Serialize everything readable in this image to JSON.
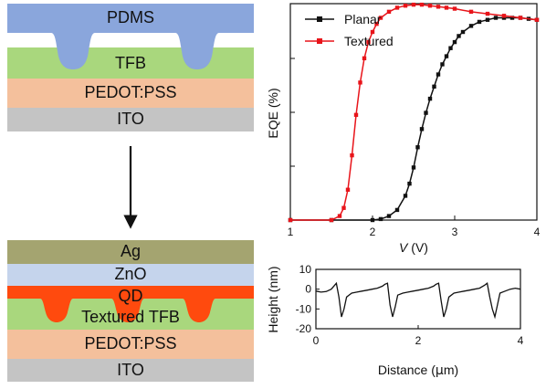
{
  "top_stack": {
    "layers": [
      {
        "label": "PDMS",
        "color": "#8aa6dc"
      },
      {
        "label": "TFB",
        "color": "#a9d77d"
      },
      {
        "label": "PEDOT:PSS",
        "color": "#f4c09c"
      },
      {
        "label": "ITO",
        "color": "#c4c4c4"
      }
    ]
  },
  "bottom_stack": {
    "layers": [
      {
        "label": "Ag",
        "color": "#a4a470"
      },
      {
        "label": "ZnO",
        "color": "#c5d4ec"
      },
      {
        "label": "QD",
        "color": "#ff4a0e"
      },
      {
        "label": "Textured TFB",
        "color": "#a9d77d"
      },
      {
        "label": "PEDOT:PSS",
        "color": "#f4c09c"
      },
      {
        "label": "ITO",
        "color": "#c4c4c4"
      }
    ]
  },
  "chart_data": [
    {
      "type": "line",
      "title": "",
      "xlabel_italic": "V",
      "xlabel_unit": " (V)",
      "ylabel": "EQE (%)",
      "xlim": [
        1,
        4
      ],
      "ylim": [
        0,
        1.07
      ],
      "xticks": [
        "1",
        "2",
        "3",
        "4"
      ],
      "legend_position": "top-left",
      "series": [
        {
          "name": "Planar",
          "color": "#111111",
          "x": [
            1.0,
            1.5,
            2.0,
            2.1,
            2.2,
            2.3,
            2.4,
            2.45,
            2.5,
            2.55,
            2.6,
            2.65,
            2.7,
            2.75,
            2.8,
            2.85,
            2.9,
            2.95,
            3.0,
            3.05,
            3.1,
            3.2,
            3.3,
            3.4,
            3.5,
            3.6,
            3.7,
            3.8,
            3.9,
            4.0
          ],
          "y": [
            0,
            0,
            0,
            0.005,
            0.02,
            0.05,
            0.12,
            0.18,
            0.26,
            0.36,
            0.45,
            0.53,
            0.6,
            0.66,
            0.72,
            0.77,
            0.81,
            0.85,
            0.88,
            0.91,
            0.93,
            0.96,
            0.98,
            0.99,
            1.0,
            1.0,
            1.0,
            1.0,
            0.995,
            0.99
          ]
        },
        {
          "name": "Textured",
          "color": "#e8141a",
          "x": [
            1.0,
            1.5,
            1.6,
            1.65,
            1.7,
            1.75,
            1.8,
            1.85,
            1.9,
            1.95,
            2.0,
            2.05,
            2.1,
            2.2,
            2.3,
            2.4,
            2.5,
            2.6,
            2.7,
            2.8,
            2.9,
            3.0,
            3.2,
            3.4,
            3.6,
            3.8,
            4.0
          ],
          "y": [
            0,
            0,
            0.02,
            0.06,
            0.15,
            0.32,
            0.52,
            0.68,
            0.8,
            0.88,
            0.93,
            0.97,
            1.0,
            1.03,
            1.05,
            1.06,
            1.065,
            1.065,
            1.06,
            1.055,
            1.05,
            1.045,
            1.03,
            1.02,
            1.01,
            1.0,
            0.99
          ]
        }
      ]
    },
    {
      "type": "line",
      "title": "",
      "xlabel_pre": "Distance (",
      "xlabel_mu": "μ",
      "xlabel_post": "m)",
      "ylabel": "Height (nm)",
      "xlim": [
        0,
        4
      ],
      "ylim": [
        -20,
        10
      ],
      "xticks": [
        "0",
        "2",
        "4"
      ],
      "yticks": [
        "10",
        "0",
        "-10",
        "-20"
      ],
      "series": [
        {
          "name": "",
          "color": "#111111",
          "x": [
            0,
            0.1,
            0.2,
            0.3,
            0.35,
            0.4,
            0.45,
            0.5,
            0.55,
            0.6,
            0.7,
            0.8,
            0.9,
            1.0,
            1.1,
            1.2,
            1.3,
            1.35,
            1.4,
            1.45,
            1.5,
            1.55,
            1.6,
            1.7,
            1.8,
            1.9,
            2.0,
            2.1,
            2.2,
            2.3,
            2.35,
            2.4,
            2.45,
            2.5,
            2.55,
            2.6,
            2.7,
            2.8,
            2.9,
            3.0,
            3.1,
            3.2,
            3.3,
            3.35,
            3.4,
            3.45,
            3.5,
            3.55,
            3.6,
            3.7,
            3.8,
            3.9,
            4.0
          ],
          "y": [
            -1,
            -1.5,
            -1.2,
            0,
            1.5,
            3,
            -4,
            -14,
            -10,
            -4,
            -2,
            -1.5,
            -1,
            -0.5,
            0,
            0.5,
            1.5,
            2.5,
            3,
            -8,
            -14,
            -9,
            -3,
            -2,
            -1.5,
            -1,
            -0.5,
            0,
            0.5,
            1.5,
            2.5,
            3,
            -6,
            -14,
            -10,
            -4,
            -2,
            -1.5,
            -1,
            -0.5,
            0,
            0.5,
            2,
            3,
            -4,
            -10,
            -14,
            -8,
            -2,
            -1,
            0,
            0.5,
            0
          ]
        }
      ]
    }
  ]
}
